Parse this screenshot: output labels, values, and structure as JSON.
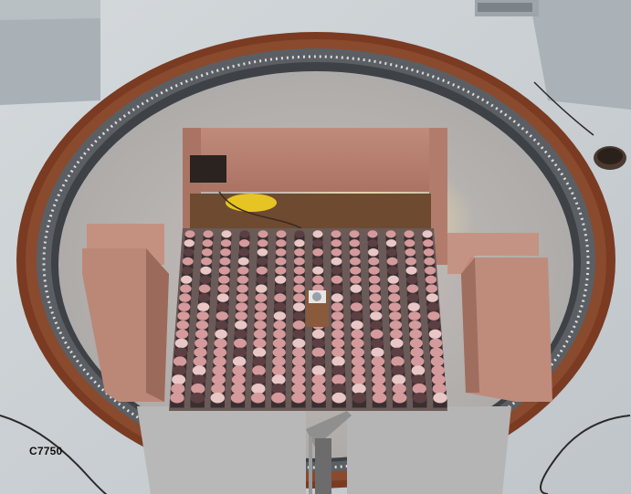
{
  "photo": {
    "caption": "C7750",
    "grid": {
      "rows": 19,
      "cols": 14
    },
    "colors": {
      "floor": "#c9cfd3",
      "ring_outer": "#7a3b22",
      "ring_inner": "#4b4f54",
      "pool_floor": "#b9b3ae",
      "wall": "#b98373",
      "cap_pink": "#d59a9c",
      "cap_dark": "#5b3f42",
      "cap_light": "#e8c7c6"
    }
  }
}
